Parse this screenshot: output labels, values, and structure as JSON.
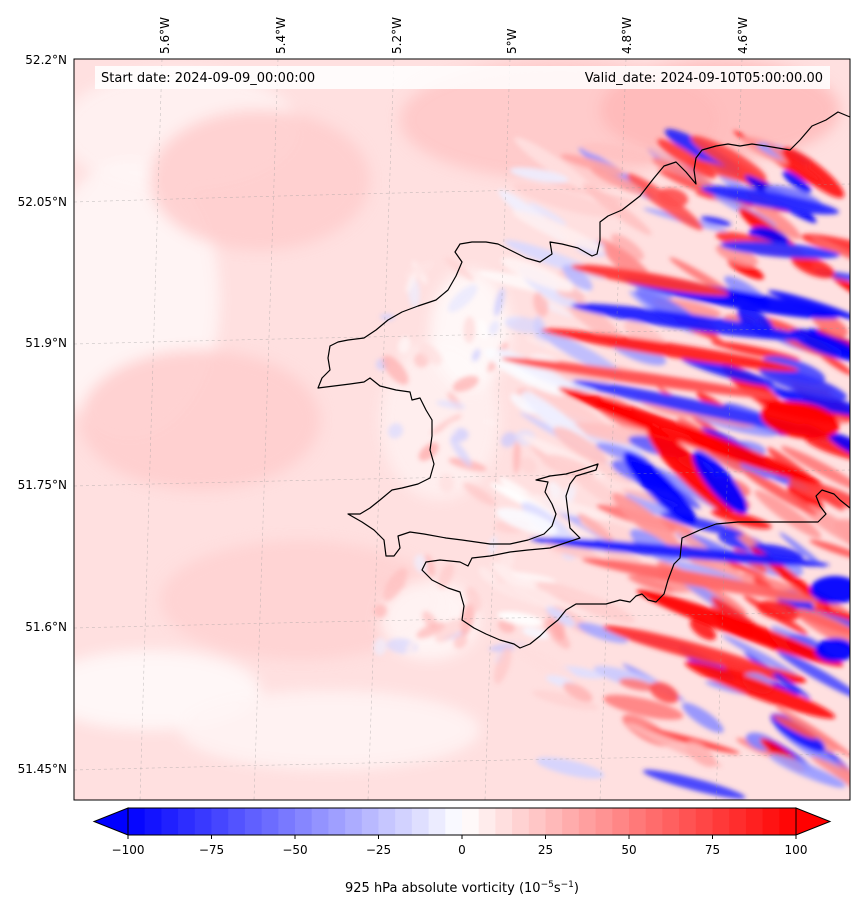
{
  "header": {
    "start_date": "Start date: 2024-09-09_00:00:00",
    "valid_date": "Valid_date: 2024-09-10T05:00:00.00"
  },
  "axes": {
    "lon_labels": [
      "5.6°W",
      "5.4°W",
      "5.2°W",
      "5°W",
      "4.8°W",
      "4.6°W"
    ],
    "lat_labels": [
      "52.2°N",
      "52.05°N",
      "51.9°N",
      "51.75°N",
      "51.6°N",
      "51.45°N"
    ]
  },
  "colorbar": {
    "label": "925 hPa absolute vorticity (10",
    "label_exp1": "−5",
    "label_mid": "s",
    "label_exp2": "−1",
    "label_end": ")",
    "ticks": [
      "−100",
      "−75",
      "−50",
      "−25",
      "0",
      "25",
      "50",
      "75",
      "100"
    ],
    "tick_values": [
      -100,
      -75,
      -50,
      -25,
      0,
      25,
      50,
      75,
      100
    ],
    "min": -100,
    "max": 100,
    "levels": 40,
    "extend": "both",
    "cmap": "bwr",
    "low_color": "#0000ff",
    "mid_color": "#ffffff",
    "high_color": "#ff0000"
  },
  "map": {
    "projection": "Lambert",
    "field": "925 hPa absolute vorticity",
    "background_value": 12,
    "coastline_color": "#000000",
    "gridline_style": "dashed"
  }
}
